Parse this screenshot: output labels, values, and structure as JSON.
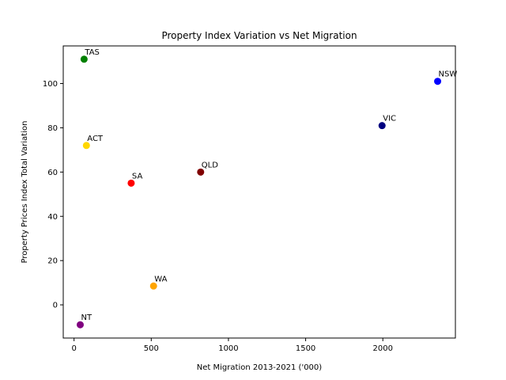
{
  "chart_data": {
    "type": "scatter",
    "title": "Property Index Variation vs Net Migration",
    "xlabel": "Net Migration 2013-2021 ('000)",
    "ylabel": "Property Prices Index Total Variation",
    "xlim": [
      -70,
      2470
    ],
    "ylim": [
      -15,
      117
    ],
    "xticks": [
      0,
      500,
      1000,
      1500,
      2000
    ],
    "yticks": [
      0,
      20,
      40,
      60,
      80,
      100
    ],
    "grid": false,
    "points": [
      {
        "label": "NSW",
        "x": 2355,
        "y": 101,
        "color": "#0000ff"
      },
      {
        "label": "VIC",
        "x": 1995,
        "y": 81,
        "color": "#000080"
      },
      {
        "label": "QLD",
        "x": 820,
        "y": 60,
        "color": "#800000"
      },
      {
        "label": "SA",
        "x": 370,
        "y": 55,
        "color": "#ff0000"
      },
      {
        "label": "WA",
        "x": 515,
        "y": 8.5,
        "color": "#ffa500"
      },
      {
        "label": "TAS",
        "x": 65,
        "y": 111,
        "color": "#008000"
      },
      {
        "label": "ACT",
        "x": 80,
        "y": 72,
        "color": "#ffd700"
      },
      {
        "label": "NT",
        "x": 40,
        "y": -9,
        "color": "#800080"
      }
    ]
  }
}
